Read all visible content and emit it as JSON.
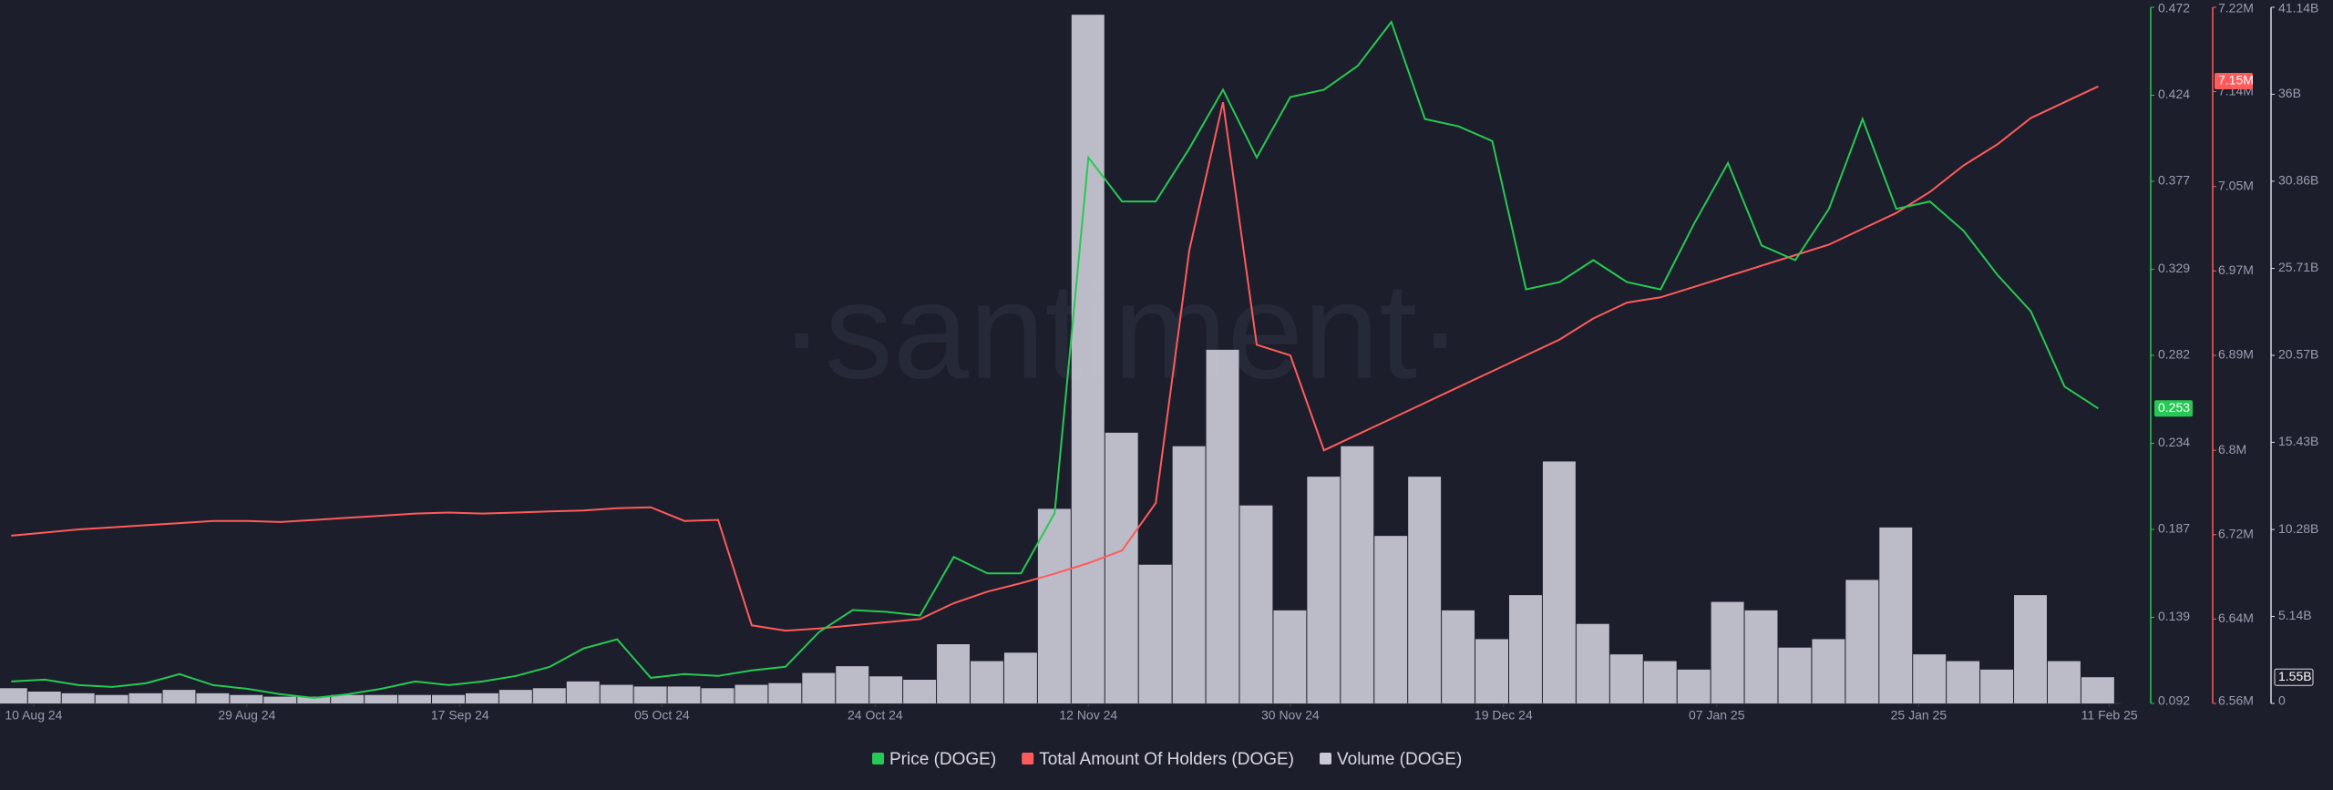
{
  "chart_data": {
    "type": "line",
    "watermark": "·santiment·",
    "x": [
      "2024-08-08",
      "2024-08-11",
      "2024-08-14",
      "2024-08-17",
      "2024-08-20",
      "2024-08-23",
      "2024-08-26",
      "2024-08-29",
      "2024-09-01",
      "2024-09-04",
      "2024-09-07",
      "2024-09-10",
      "2024-09-13",
      "2024-09-16",
      "2024-09-19",
      "2024-09-22",
      "2024-09-25",
      "2024-09-28",
      "2024-10-01",
      "2024-10-04",
      "2024-10-07",
      "2024-10-10",
      "2024-10-13",
      "2024-10-16",
      "2024-10-19",
      "2024-10-22",
      "2024-10-25",
      "2024-10-28",
      "2024-10-31",
      "2024-11-03",
      "2024-11-06",
      "2024-11-09",
      "2024-11-12",
      "2024-11-15",
      "2024-11-18",
      "2024-11-21",
      "2024-11-24",
      "2024-11-27",
      "2024-11-30",
      "2024-12-03",
      "2024-12-06",
      "2024-12-09",
      "2024-12-12",
      "2024-12-15",
      "2024-12-18",
      "2024-12-21",
      "2024-12-24",
      "2024-12-27",
      "2024-12-30",
      "2025-01-02",
      "2025-01-05",
      "2025-01-08",
      "2025-01-11",
      "2025-01-14",
      "2025-01-17",
      "2025-01-20",
      "2025-01-23",
      "2025-01-26",
      "2025-01-29",
      "2025-02-01",
      "2025-02-04",
      "2025-02-07",
      "2025-02-10"
    ],
    "xlim": [
      "2024-08-07",
      "2025-02-12"
    ],
    "xticks": [
      {
        "value": "2024-08-10",
        "label": "10 Aug 24"
      },
      {
        "value": "2024-08-29",
        "label": "29 Aug 24"
      },
      {
        "value": "2024-09-17",
        "label": "17 Sep 24"
      },
      {
        "value": "2024-10-05",
        "label": "05 Oct 24"
      },
      {
        "value": "2024-10-24",
        "label": "24 Oct 24"
      },
      {
        "value": "2024-11-12",
        "label": "12 Nov 24"
      },
      {
        "value": "2024-11-30",
        "label": "30 Nov 24"
      },
      {
        "value": "2024-12-19",
        "label": "19 Dec 24"
      },
      {
        "value": "2025-01-07",
        "label": "07 Jan 25"
      },
      {
        "value": "2025-01-25",
        "label": "25 Jan 25"
      },
      {
        "value": "2025-02-11",
        "label": "11 Feb 25"
      }
    ],
    "ylim": [
      0.092,
      0.472
    ],
    "yticks": [
      0.092,
      0.139,
      0.187,
      0.234,
      0.282,
      0.329,
      0.377,
      0.424,
      0.472
    ],
    "y2lim": [
      6560000,
      7220000
    ],
    "y2ticks": [
      {
        "value": 6560000,
        "label": "6.56M"
      },
      {
        "value": 6640000,
        "label": "6.64M"
      },
      {
        "value": 6720000,
        "label": "6.72M"
      },
      {
        "value": 6800000,
        "label": "6.8M"
      },
      {
        "value": 6890000,
        "label": "6.89M"
      },
      {
        "value": 6970000,
        "label": "6.97M"
      },
      {
        "value": 7050000,
        "label": "7.05M"
      },
      {
        "value": 7140000,
        "label": "7.14M"
      },
      {
        "value": 7220000,
        "label": "7.22M"
      }
    ],
    "y3lim": [
      0,
      41140000000
    ],
    "y3ticks": [
      0,
      {
        "value": 5140000000,
        "label": "5.14B"
      },
      {
        "value": 10280000000,
        "label": "10.28B"
      },
      {
        "value": 15430000000,
        "label": "15.43B"
      },
      {
        "value": 20570000000,
        "label": "20.57B"
      },
      {
        "value": 25710000000,
        "label": "25.71B"
      },
      {
        "value": 30860000000,
        "label": "30.86B"
      },
      {
        "value": 36000000000,
        "label": "36B"
      },
      {
        "value": 41140000000,
        "label": "41.14B"
      }
    ],
    "series": [
      {
        "name": "Price (DOGE)",
        "color": "#26c953",
        "axis": "y",
        "last_value": 0.253,
        "values": [
          0.104,
          0.105,
          0.102,
          0.101,
          0.103,
          0.108,
          0.102,
          0.1,
          0.097,
          0.095,
          0.097,
          0.1,
          0.104,
          0.102,
          0.104,
          0.107,
          0.112,
          0.122,
          0.127,
          0.106,
          0.108,
          0.107,
          0.11,
          0.112,
          0.131,
          0.143,
          0.142,
          0.14,
          0.172,
          0.163,
          0.163,
          0.196,
          0.39,
          0.366,
          0.366,
          0.395,
          0.427,
          0.39,
          0.423,
          0.427,
          0.44,
          0.464,
          0.411,
          0.407,
          0.399,
          0.318,
          0.322,
          0.334,
          0.322,
          0.318,
          0.354,
          0.387,
          0.342,
          0.334,
          0.362,
          0.411,
          0.362,
          0.366,
          0.35,
          0.326,
          0.306,
          0.265,
          0.253
        ]
      },
      {
        "name": "Total Amount Of Holders (DOGE)",
        "color": "#ff5b5b",
        "axis": "y2",
        "last_value": {
          "value": 7150000,
          "label": "7.15M"
        },
        "values": [
          6719000,
          6722000,
          6725000,
          6727000,
          6729000,
          6731000,
          6733000,
          6733000,
          6732000,
          6734000,
          6736000,
          6738000,
          6740000,
          6741000,
          6740000,
          6741000,
          6742000,
          6743000,
          6745000,
          6746000,
          6733000,
          6734000,
          6634000,
          6629000,
          6631000,
          6634000,
          6637000,
          6640000,
          6655000,
          6666000,
          6674000,
          6683000,
          6693000,
          6705000,
          6750000,
          6990000,
          7130000,
          6900000,
          6890000,
          6800000,
          6815000,
          6830000,
          6845000,
          6860000,
          6875000,
          6890000,
          6905000,
          6925000,
          6940000,
          6945000,
          6955000,
          6965000,
          6975000,
          6985000,
          6995000,
          7010000,
          7025000,
          7045000,
          7070000,
          7090000,
          7115000,
          7130000,
          7145000
        ]
      },
      {
        "name": "Volume (DOGE)",
        "color": "#c9cad6",
        "axis": "y3",
        "last_value": {
          "value": 1550000000,
          "label": "1.55B"
        },
        "values": [
          900000000,
          700000000,
          600000000,
          500000000,
          600000000,
          800000000,
          600000000,
          500000000,
          400000000,
          400000000,
          500000000,
          500000000,
          500000000,
          500000000,
          600000000,
          800000000,
          900000000,
          1300000000,
          1100000000,
          1000000000,
          1000000000,
          900000000,
          1100000000,
          1200000000,
          1800000000,
          2200000000,
          1600000000,
          1400000000,
          3500000000,
          2500000000,
          3000000000,
          11500000000,
          40700000000,
          16000000000,
          8200000000,
          15200000000,
          20900000000,
          11700000000,
          5500000000,
          13400000000,
          15200000000,
          9900000000,
          13400000000,
          5500000000,
          3800000000,
          6400000000,
          14300000000,
          4700000000,
          2900000000,
          2500000000,
          2000000000,
          6000000000,
          5500000000,
          3300000000,
          3800000000,
          7300000000,
          10400000000,
          2900000000,
          2500000000,
          2000000000,
          6400000000,
          2500000000,
          1550000000
        ]
      }
    ]
  }
}
